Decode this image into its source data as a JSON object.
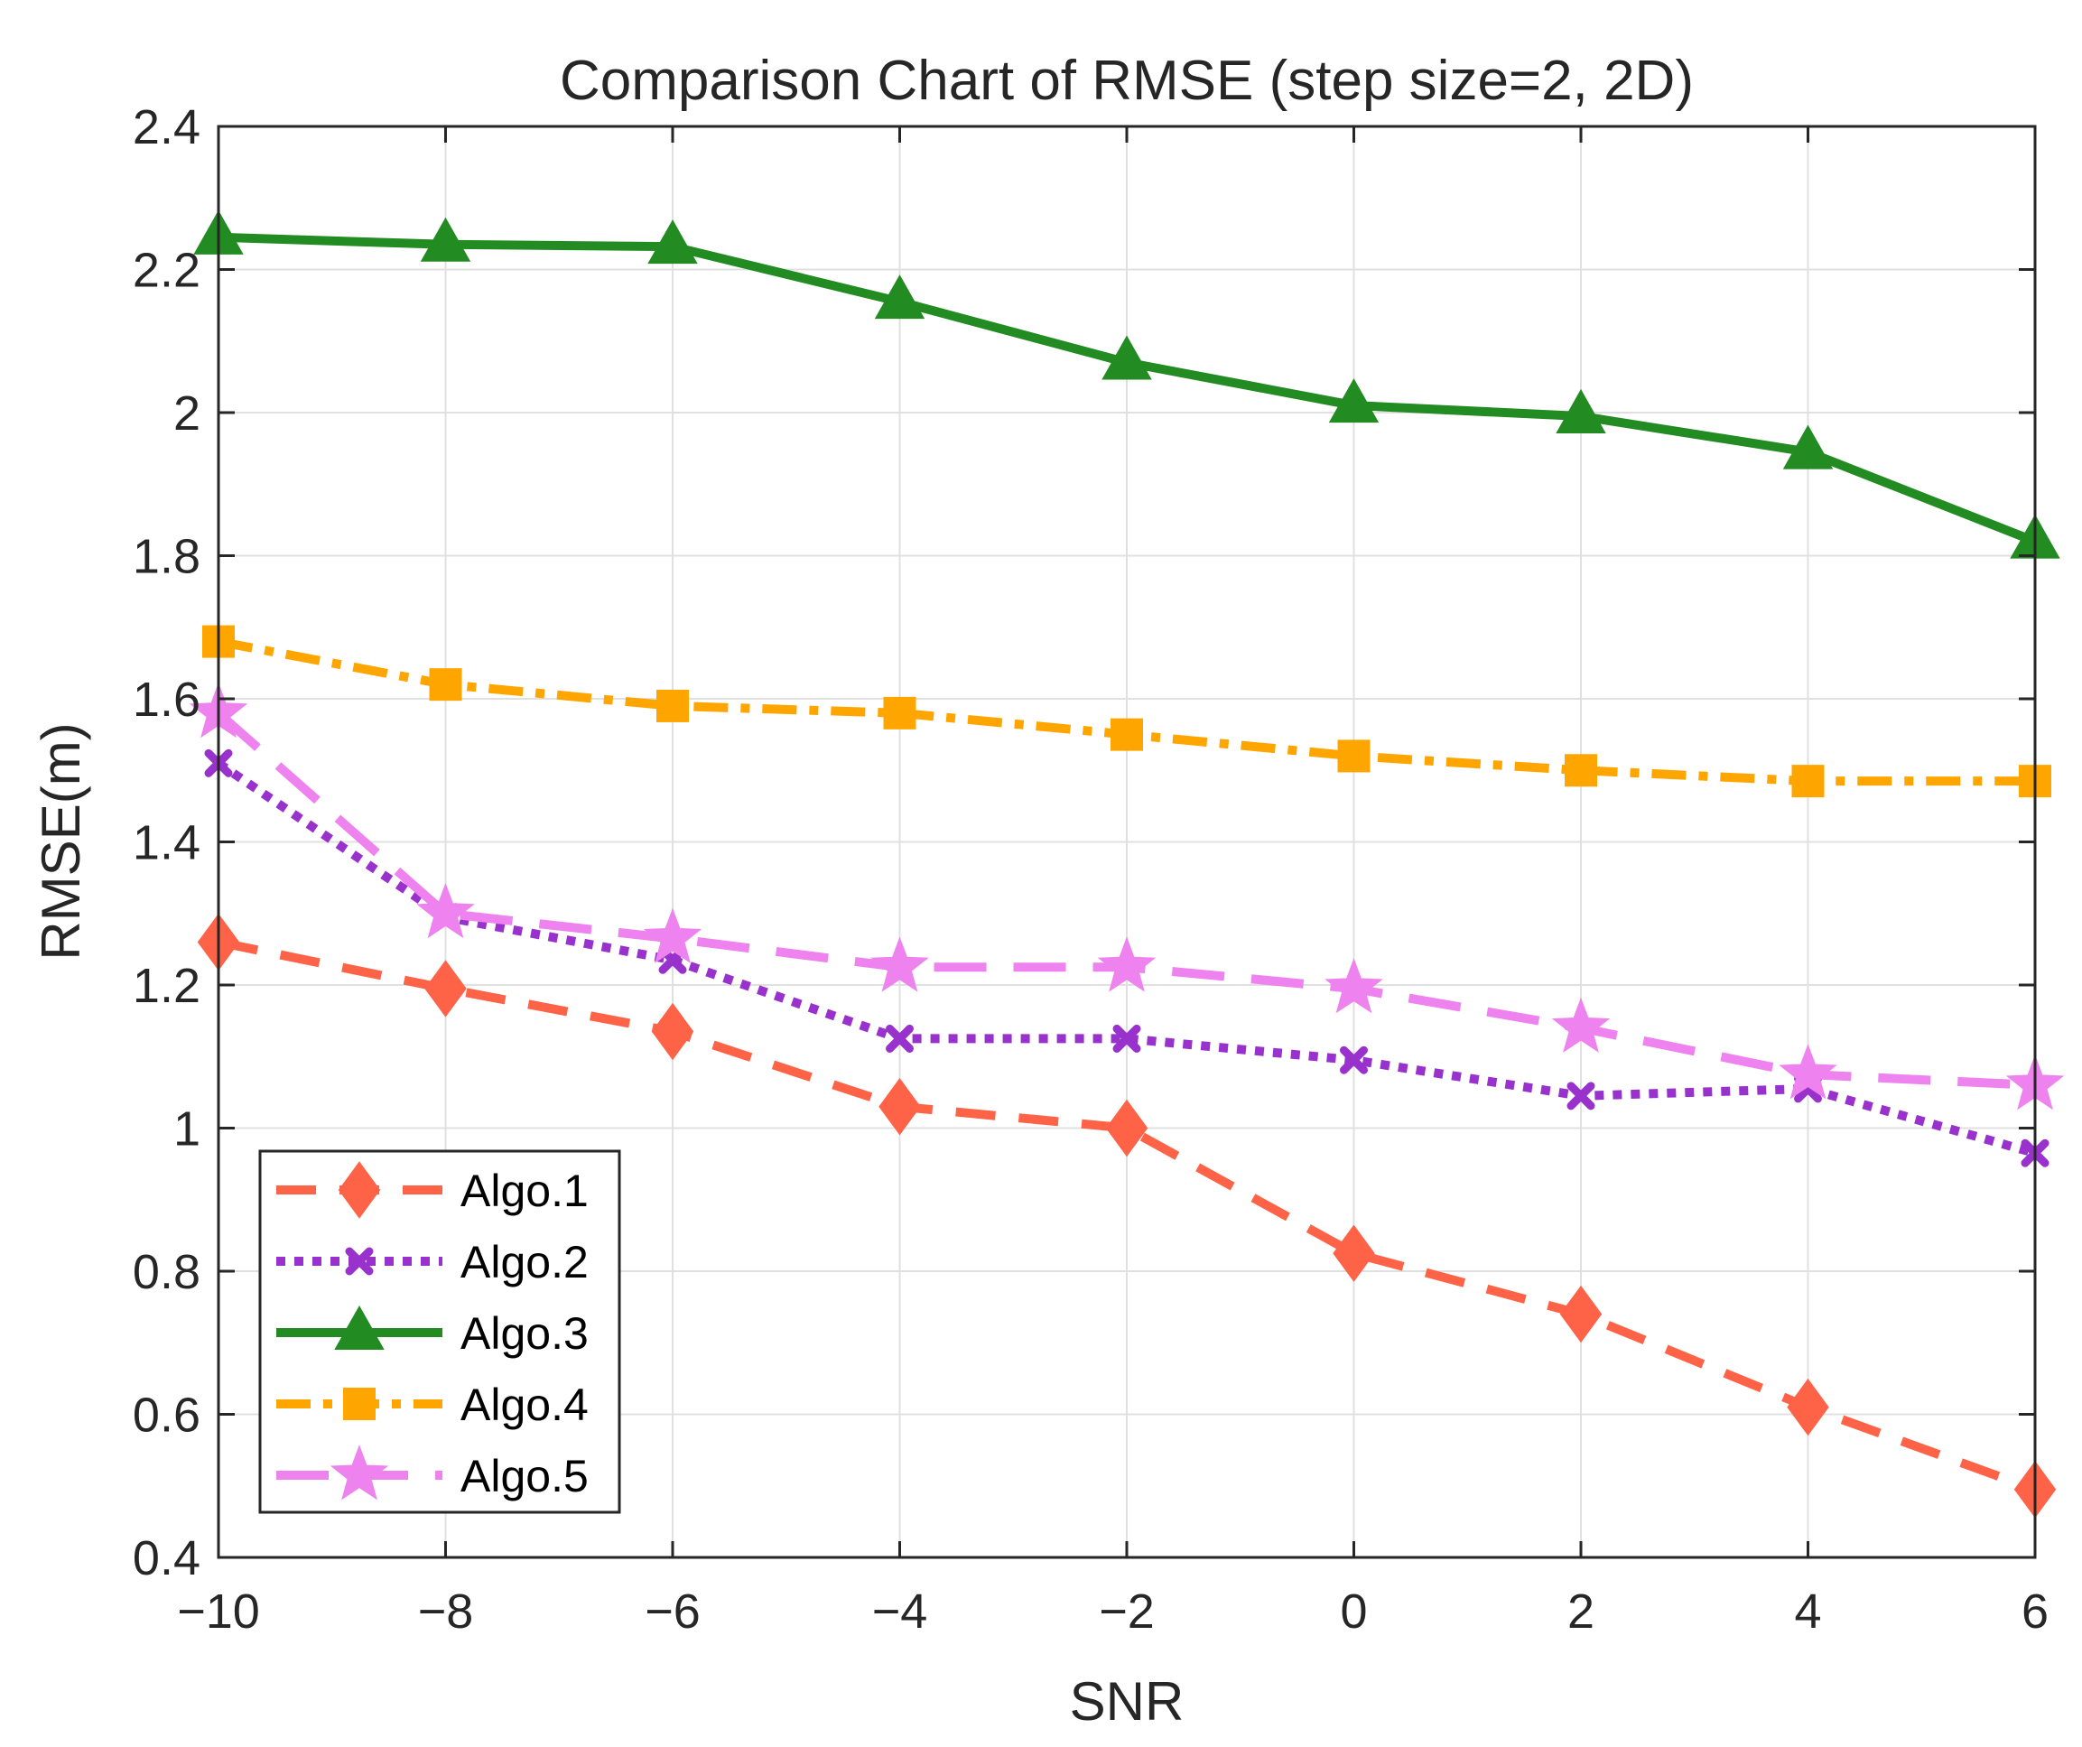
{
  "chart_data": {
    "type": "line",
    "title": "Comparison Chart of RMSE (step size=2, 2D)",
    "xlabel": "SNR",
    "ylabel": "RMSE(m)",
    "xlim": [
      -10,
      6
    ],
    "ylim": [
      0.4,
      2.4
    ],
    "grid": true,
    "legend_position": "bottom-left",
    "x": [
      -10,
      -8,
      -6,
      -4,
      -2,
      0,
      2,
      4,
      6
    ],
    "x_tick_labels": [
      "−10",
      "−8",
      "−6",
      "−4",
      "−2",
      "0",
      "2",
      "4",
      "6"
    ],
    "y_ticks": [
      0.4,
      0.6,
      0.8,
      1.0,
      1.2,
      1.4,
      1.6,
      1.8,
      2.0,
      2.2,
      2.4
    ],
    "y_tick_labels": [
      "0.4",
      "0.6",
      "0.8",
      "1",
      "1.2",
      "1.4",
      "1.6",
      "1.8",
      "2",
      "2.2",
      "2.4"
    ],
    "series": [
      {
        "name": "Algo.1",
        "color": "#FF6347",
        "marker": "diamond",
        "line_style": "dashed",
        "values": [
          1.26,
          1.195,
          1.135,
          1.03,
          1.0,
          0.825,
          0.74,
          0.61,
          0.495
        ]
      },
      {
        "name": "Algo.2",
        "color": "#9932CC",
        "marker": "x",
        "line_style": "dotted",
        "values": [
          1.51,
          1.295,
          1.235,
          1.125,
          1.125,
          1.095,
          1.045,
          1.055,
          0.965
        ]
      },
      {
        "name": "Algo.3",
        "color": "#228B22",
        "marker": "triangle",
        "line_style": "solid",
        "values": [
          2.245,
          2.235,
          2.232,
          2.155,
          2.07,
          2.01,
          1.995,
          1.945,
          1.82
        ]
      },
      {
        "name": "Algo.4",
        "color": "#FFA500",
        "marker": "square",
        "line_style": "dashdot",
        "values": [
          1.68,
          1.62,
          1.59,
          1.58,
          1.55,
          1.52,
          1.5,
          1.485,
          1.485
        ]
      },
      {
        "name": "Algo.5",
        "color": "#EE82EE",
        "marker": "star",
        "line_style": "longdash",
        "values": [
          1.58,
          1.3,
          1.265,
          1.225,
          1.225,
          1.195,
          1.14,
          1.075,
          1.06
        ]
      }
    ]
  }
}
